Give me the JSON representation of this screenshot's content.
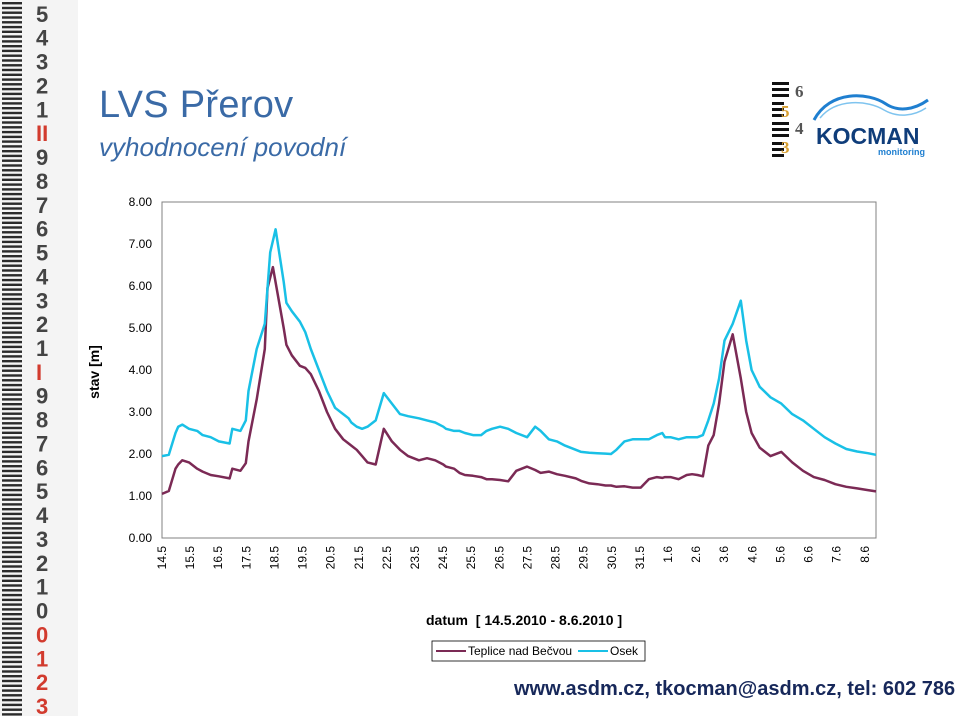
{
  "header": {
    "title": "LVS Přerov",
    "subtitle": "vyhodnocení povodní"
  },
  "logo": {
    "name": "KOCMAN",
    "tagline": "monitoring",
    "digits": [
      "6",
      "5",
      "4",
      "3"
    ]
  },
  "ruler": {
    "digits": [
      "5",
      "4",
      "3",
      "2",
      "1",
      "II",
      "9",
      "8",
      "7",
      "6",
      "5",
      "4",
      "3",
      "2",
      "1",
      "I",
      "9",
      "8",
      "7",
      "6",
      "5",
      "4",
      "3",
      "2",
      "1",
      "0",
      "0",
      "1",
      "2",
      "3"
    ]
  },
  "footer": {
    "contact": "www.asdm.cz, tkocman@asdm.cz, tel: 602 786 247"
  },
  "colors": {
    "title": "#3a6aa6",
    "teplice": "#7b2a55",
    "osek": "#19c0e6",
    "footer": "#17285a",
    "logo_wave": "#1f7fd0"
  },
  "chart_data": {
    "type": "line",
    "title": "",
    "xlabel": "datum  [ 14.5.2010 - 8.6.2010 ]",
    "ylabel": "stav [m]",
    "ylim": [
      0,
      8
    ],
    "xlim": [
      14.5,
      40.9
    ],
    "ytick_labels": [
      "0.00",
      "1.00",
      "2.00",
      "3.00",
      "4.00",
      "5.00",
      "6.00",
      "7.00",
      "8.00"
    ],
    "xtick_labels": [
      "14.5",
      "15.5",
      "16.5",
      "17.5",
      "18.5",
      "19.5",
      "20.5",
      "21.5",
      "22.5",
      "23.5",
      "24.5",
      "25.5",
      "26.5",
      "27.5",
      "28.5",
      "29.5",
      "30.5",
      "31.5",
      "1.6",
      "2.6",
      "3.6",
      "4.6",
      "5.6",
      "6.6",
      "7.6",
      "8.6"
    ],
    "grid": false,
    "legend": "bottom",
    "series": [
      {
        "name": "Teplice nad Bečvou",
        "color": "#7b2a55",
        "x": [
          14.5,
          14.75,
          15.0,
          15.1,
          15.25,
          15.5,
          15.8,
          16.0,
          16.3,
          16.6,
          17.0,
          17.1,
          17.4,
          17.6,
          17.7,
          18.0,
          18.3,
          18.4,
          18.6,
          19.0,
          19.1,
          19.3,
          19.6,
          19.8,
          20.0,
          20.3,
          20.6,
          20.9,
          21.2,
          21.4,
          21.5,
          21.7,
          21.9,
          22.1,
          22.4,
          22.7,
          23.0,
          23.3,
          23.6,
          24.0,
          24.3,
          24.6,
          24.9,
          25.0,
          25.3,
          25.5,
          25.7,
          26.0,
          26.3,
          26.5,
          26.7,
          27.0,
          27.3,
          27.6,
          28.0,
          28.3,
          28.5,
          28.8,
          29.1,
          29.4,
          29.8,
          30.0,
          30.3,
          30.6,
          30.9,
          31.1,
          31.3,
          31.6,
          31.9,
          32.2,
          32.5,
          32.8,
          33.0,
          33.1,
          33.3,
          33.6,
          33.9,
          34.1,
          34.3,
          34.5,
          34.7,
          34.9,
          35.1,
          35.3,
          35.6,
          35.9,
          36.1,
          36.3,
          36.6,
          37.0,
          37.4,
          37.8,
          38.2,
          38.6,
          39.0,
          39.4,
          39.8,
          40.2,
          40.6,
          40.9
        ],
        "values": [
          1.05,
          1.12,
          1.65,
          1.75,
          1.85,
          1.8,
          1.65,
          1.58,
          1.5,
          1.47,
          1.42,
          1.65,
          1.6,
          1.78,
          2.3,
          3.3,
          4.5,
          5.95,
          6.45,
          5.0,
          4.6,
          4.35,
          4.1,
          4.05,
          3.9,
          3.5,
          3.0,
          2.6,
          2.35,
          2.25,
          2.2,
          2.1,
          1.95,
          1.8,
          1.75,
          2.6,
          2.3,
          2.1,
          1.95,
          1.85,
          1.9,
          1.85,
          1.75,
          1.7,
          1.65,
          1.55,
          1.5,
          1.48,
          1.45,
          1.4,
          1.4,
          1.38,
          1.35,
          1.6,
          1.7,
          1.62,
          1.55,
          1.58,
          1.52,
          1.48,
          1.42,
          1.36,
          1.3,
          1.28,
          1.25,
          1.25,
          1.22,
          1.23,
          1.2,
          1.2,
          1.4,
          1.45,
          1.43,
          1.45,
          1.45,
          1.4,
          1.5,
          1.52,
          1.5,
          1.47,
          2.2,
          2.45,
          3.2,
          4.2,
          4.85,
          3.8,
          3.0,
          2.5,
          2.15,
          1.95,
          2.05,
          1.8,
          1.6,
          1.45,
          1.38,
          1.28,
          1.22,
          1.18,
          1.14,
          1.11
        ]
      },
      {
        "name": "Osek",
        "color": "#19c0e6",
        "x": [
          14.5,
          14.75,
          15.0,
          15.1,
          15.25,
          15.5,
          15.8,
          16.0,
          16.3,
          16.6,
          17.0,
          17.1,
          17.4,
          17.6,
          17.7,
          18.0,
          18.3,
          18.5,
          18.7,
          19.0,
          19.1,
          19.3,
          19.6,
          19.8,
          20.0,
          20.3,
          20.6,
          20.9,
          21.2,
          21.4,
          21.5,
          21.7,
          21.9,
          22.1,
          22.4,
          22.7,
          23.0,
          23.3,
          23.6,
          24.0,
          24.3,
          24.6,
          24.9,
          25.0,
          25.3,
          25.5,
          25.7,
          26.0,
          26.3,
          26.5,
          26.7,
          27.0,
          27.3,
          27.6,
          28.0,
          28.3,
          28.5,
          28.8,
          29.1,
          29.4,
          29.8,
          30.0,
          30.3,
          30.6,
          30.9,
          31.1,
          31.3,
          31.6,
          31.9,
          32.2,
          32.5,
          32.8,
          33.0,
          33.1,
          33.3,
          33.6,
          33.9,
          34.1,
          34.3,
          34.5,
          34.7,
          34.9,
          35.1,
          35.3,
          35.6,
          35.9,
          36.1,
          36.3,
          36.6,
          37.0,
          37.4,
          37.8,
          38.2,
          38.6,
          39.0,
          39.4,
          39.8,
          40.2,
          40.6,
          40.9
        ],
        "values": [
          1.95,
          1.98,
          2.5,
          2.65,
          2.7,
          2.6,
          2.55,
          2.45,
          2.4,
          2.3,
          2.25,
          2.6,
          2.55,
          2.8,
          3.5,
          4.5,
          5.1,
          6.8,
          7.35,
          6.1,
          5.6,
          5.4,
          5.15,
          4.9,
          4.5,
          4.0,
          3.5,
          3.1,
          2.95,
          2.85,
          2.75,
          2.65,
          2.6,
          2.65,
          2.8,
          3.45,
          3.2,
          2.95,
          2.9,
          2.85,
          2.8,
          2.75,
          2.65,
          2.6,
          2.55,
          2.55,
          2.5,
          2.45,
          2.45,
          2.55,
          2.6,
          2.65,
          2.6,
          2.5,
          2.4,
          2.65,
          2.55,
          2.35,
          2.3,
          2.2,
          2.1,
          2.05,
          2.03,
          2.02,
          2.01,
          2.0,
          2.1,
          2.3,
          2.35,
          2.35,
          2.35,
          2.45,
          2.5,
          2.4,
          2.4,
          2.35,
          2.4,
          2.4,
          2.4,
          2.45,
          2.8,
          3.2,
          3.8,
          4.7,
          5.1,
          5.65,
          4.7,
          4.0,
          3.6,
          3.35,
          3.2,
          2.95,
          2.8,
          2.6,
          2.4,
          2.25,
          2.12,
          2.06,
          2.02,
          1.98
        ]
      }
    ]
  }
}
